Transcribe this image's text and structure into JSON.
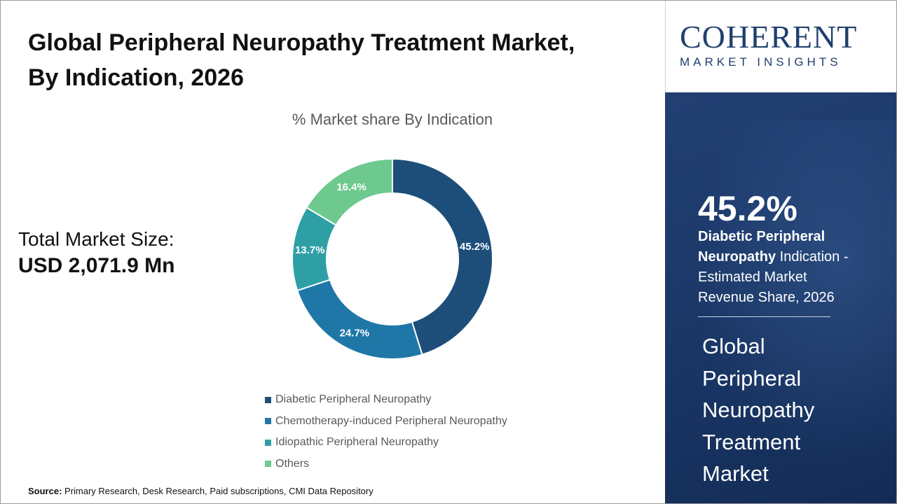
{
  "header": {
    "title_line1": "Global Peripheral Neuropathy Treatment Market,",
    "title_line2": "By Indication, 2026"
  },
  "market_size": {
    "label": "Total Market Size:",
    "value": "USD 2,071.9 Mn"
  },
  "source": {
    "label": "Source:",
    "text": "Primary Research, Desk Research, Paid subscriptions, CMI Data Repository"
  },
  "logo": {
    "main": "COHERENT",
    "sub": "MARKET INSIGHTS"
  },
  "side_panel": {
    "highlight_value": "45.2%",
    "highlight_bold_1": "Diabetic Peripheral",
    "highlight_bold_2": "Neuropathy",
    "highlight_rest_1": " Indication -",
    "highlight_rest_2": "Estimated Market",
    "highlight_rest_3": "Revenue Share, 2026",
    "market_lines": [
      "Global",
      "Peripheral",
      "Neuropathy",
      "Treatment",
      "Market"
    ]
  },
  "colors": {
    "accent_navy": "#1f3f6e",
    "panel_blue": "#1b3868"
  },
  "chart_data": {
    "type": "pie",
    "donut": true,
    "title": "% Market share By Indication",
    "legend_position": "bottom",
    "categories": [
      "Diabetic Peripheral Neuropathy",
      "Chemotherapy-induced Peripheral Neuropathy",
      "Idiopathic Peripheral Neuropathy",
      "Others"
    ],
    "values": [
      45.2,
      24.7,
      13.7,
      16.4
    ],
    "labels": [
      "45.2%",
      "24.7%",
      "13.7%",
      "16.4%"
    ],
    "colors": [
      "#1d4e7a",
      "#1f77a8",
      "#2f9fa6",
      "#6ec98f"
    ]
  }
}
